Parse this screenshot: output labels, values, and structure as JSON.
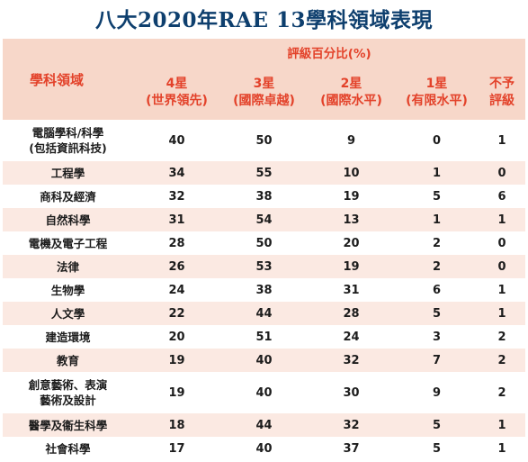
{
  "title": "八大2020年RAE 13學科領域表現",
  "header": {
    "category": "學科領域",
    "group": "評級百分比(%)",
    "columns": [
      {
        "line1": "4星",
        "line2": "(世界領先)"
      },
      {
        "line1": "3星",
        "line2": "(國際卓越)"
      },
      {
        "line1": "2星",
        "line2": "(國際水平)"
      },
      {
        "line1": "1星",
        "line2": "(有限水平)"
      },
      {
        "line1": "不予",
        "line2": "評級"
      }
    ]
  },
  "rows": [
    {
      "name1": "電腦學科/科學",
      "name2": "(包括資訊科技)",
      "values": [
        "40",
        "50",
        "9",
        "0",
        "1"
      ]
    },
    {
      "name1": "工程學",
      "name2": "",
      "values": [
        "34",
        "55",
        "10",
        "1",
        "0"
      ]
    },
    {
      "name1": "商科及經濟",
      "name2": "",
      "values": [
        "32",
        "38",
        "19",
        "5",
        "6"
      ]
    },
    {
      "name1": "自然科學",
      "name2": "",
      "values": [
        "31",
        "54",
        "13",
        "1",
        "1"
      ]
    },
    {
      "name1": "電機及電子工程",
      "name2": "",
      "values": [
        "28",
        "50",
        "20",
        "2",
        "0"
      ]
    },
    {
      "name1": "法律",
      "name2": "",
      "values": [
        "26",
        "53",
        "19",
        "2",
        "0"
      ]
    },
    {
      "name1": "生物學",
      "name2": "",
      "values": [
        "24",
        "38",
        "31",
        "6",
        "1"
      ]
    },
    {
      "name1": "人文學",
      "name2": "",
      "values": [
        "22",
        "44",
        "28",
        "5",
        "1"
      ]
    },
    {
      "name1": "建造環境",
      "name2": "",
      "values": [
        "20",
        "51",
        "24",
        "3",
        "2"
      ]
    },
    {
      "name1": "教育",
      "name2": "",
      "values": [
        "19",
        "40",
        "32",
        "7",
        "2"
      ]
    },
    {
      "name1": "創意藝術、表演",
      "name2": "藝術及設計",
      "values": [
        "19",
        "40",
        "30",
        "9",
        "2"
      ]
    },
    {
      "name1": "醫學及衞生科學",
      "name2": "",
      "values": [
        "18",
        "44",
        "32",
        "5",
        "1"
      ]
    },
    {
      "name1": "社會科學",
      "name2": "",
      "values": [
        "17",
        "40",
        "37",
        "5",
        "1"
      ]
    }
  ]
}
